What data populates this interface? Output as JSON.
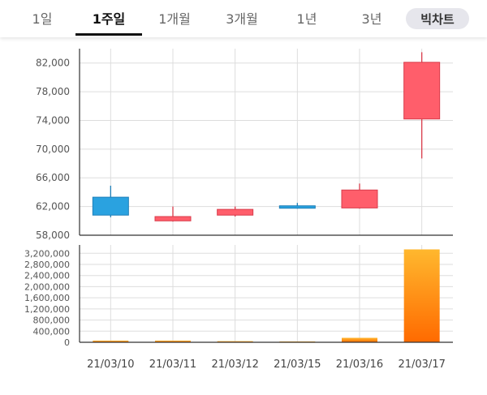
{
  "tabs": [
    {
      "label": "1일",
      "active": false
    },
    {
      "label": "1주일",
      "active": true
    },
    {
      "label": "1개월",
      "active": false
    },
    {
      "label": "3개월",
      "active": false
    },
    {
      "label": "1년",
      "active": false
    },
    {
      "label": "3년",
      "active": false
    }
  ],
  "pill_label": "빅차트",
  "colors": {
    "up": "#ff5e6b",
    "up_stroke": "#d93c4b",
    "down": "#2aa2e0",
    "down_stroke": "#1e7fb8",
    "volume_top": "#ffb82e",
    "volume_bottom": "#ff6a00",
    "grid": "#dddddd",
    "axis": "#333333"
  },
  "chart_data": [
    {
      "type": "candlestick",
      "categories": [
        "21/03/10",
        "21/03/11",
        "21/03/12",
        "21/03/15",
        "21/03/16",
        "21/03/17"
      ],
      "series": [
        {
          "open": 63300,
          "high": 64900,
          "low": 60500,
          "close": 60800,
          "direction": "down"
        },
        {
          "open": 60000,
          "high": 62000,
          "low": 59900,
          "close": 60600,
          "direction": "up"
        },
        {
          "open": 60800,
          "high": 62000,
          "low": 60600,
          "close": 61600,
          "direction": "up"
        },
        {
          "open": 62100,
          "high": 62500,
          "low": 61700,
          "close": 61800,
          "direction": "down"
        },
        {
          "open": 61800,
          "high": 65200,
          "low": 61700,
          "close": 64300,
          "direction": "up"
        },
        {
          "open": 74200,
          "high": 83500,
          "low": 68700,
          "close": 82100,
          "direction": "up"
        }
      ],
      "yticks": [
        "82,000",
        "78,000",
        "74,000",
        "70,000",
        "66,000",
        "62,000",
        "58,000"
      ],
      "ylim": [
        58000,
        84000
      ],
      "grid": true
    },
    {
      "type": "bar",
      "categories": [
        "21/03/10",
        "21/03/11",
        "21/03/12",
        "21/03/15",
        "21/03/16",
        "21/03/17"
      ],
      "values": [
        60000,
        60000,
        40000,
        30000,
        160000,
        3340000
      ],
      "yticks": [
        "3,200,000",
        "2,800,000",
        "2,400,000",
        "2,000,000",
        "1,600,000",
        "1,200,000",
        "800,000",
        "400,000",
        "0"
      ],
      "ylim": [
        0,
        3500000
      ],
      "grid": true
    }
  ]
}
